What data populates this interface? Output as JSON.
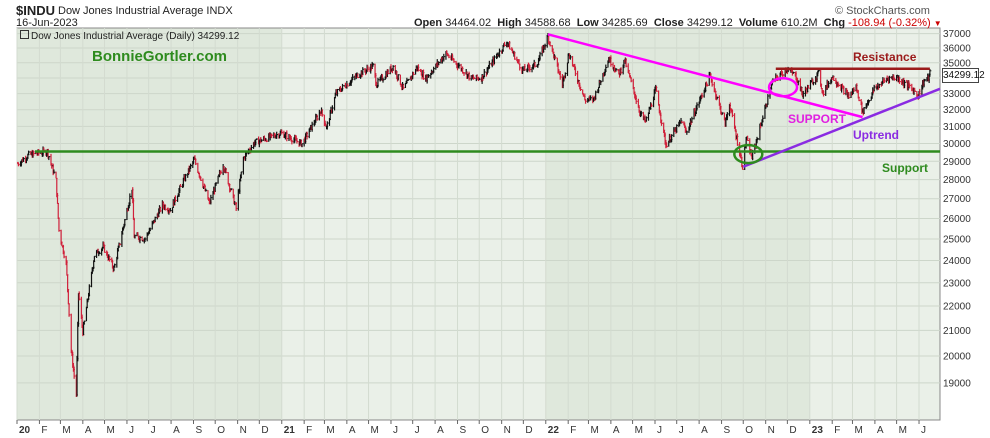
{
  "header": {
    "symbol": "$INDU",
    "company": "Dow Jones Industrial Average INDX",
    "date": "16-Jun-2023",
    "open_label": "Open",
    "open": "34464.02",
    "high_label": "High",
    "high": "34588.68",
    "low_label": "Low",
    "low": "34285.69",
    "close_label": "Close",
    "close": "34299.12",
    "volume_label": "Volume",
    "volume": "610.2M",
    "chg_label": "Chg",
    "chg": "-108.94 (-0.32%)",
    "copyright": "© StockCharts.com"
  },
  "legend_label": "Dow Jones Industrial Average (Daily) 34299.12",
  "watermark": "BonnieGortler.com",
  "price_tag": "34299.12",
  "annotations": {
    "resistance": "Resistance",
    "support_upper": "SUPPORT",
    "uptrend": "Uptrend",
    "support_lower": "Support"
  },
  "colors": {
    "up_bar": "#111111",
    "down_bar": "#d0203a",
    "support_line": "#2e8b1e",
    "resistance_line": "#9b1b1b",
    "downtrend_line": "#ff00ff",
    "uptrend_line": "#8a2be2",
    "year_shade": "#dfe8dc",
    "alt_shade": "#eaf0e8"
  },
  "chart_data": {
    "type": "line",
    "title": "Dow Jones Industrial Average (Daily) 34299.12",
    "y_scale": "log",
    "ylim": [
      17700,
      37400
    ],
    "y_ticks": [
      19000,
      20000,
      21000,
      22000,
      23000,
      24000,
      25000,
      26000,
      27000,
      28000,
      29000,
      30000,
      31000,
      32000,
      33000,
      34000,
      35000,
      36000,
      37000
    ],
    "grid": true,
    "x_ticks": [
      "20",
      "F",
      "M",
      "A",
      "M",
      "J",
      "J",
      "A",
      "S",
      "O",
      "N",
      "D",
      "21",
      "F",
      "M",
      "A",
      "M",
      "J",
      "J",
      "A",
      "S",
      "O",
      "N",
      "D",
      "22",
      "F",
      "M",
      "A",
      "M",
      "J",
      "J",
      "A",
      "S",
      "O",
      "N",
      "D",
      "23",
      "F",
      "M",
      "A",
      "M",
      "J"
    ],
    "series": [
      {
        "values": [
          [
            "2020-01-02",
            28868
          ],
          [
            "2020-01-17",
            29348
          ],
          [
            "2020-02-12",
            29551
          ],
          [
            "2020-02-24",
            27960
          ],
          [
            "2020-02-28",
            25409
          ],
          [
            "2020-03-09",
            23851
          ],
          [
            "2020-03-16",
            20188
          ],
          [
            "2020-03-23",
            18591
          ],
          [
            "2020-03-26",
            22552
          ],
          [
            "2020-04-01",
            20943
          ],
          [
            "2020-04-17",
            24242
          ],
          [
            "2020-04-29",
            24634
          ],
          [
            "2020-05-14",
            23625
          ],
          [
            "2020-06-08",
            27572
          ],
          [
            "2020-06-11",
            25128
          ],
          [
            "2020-06-26",
            25016
          ],
          [
            "2020-07-20",
            26680
          ],
          [
            "2020-07-31",
            26428
          ],
          [
            "2020-08-17",
            27844
          ],
          [
            "2020-09-02",
            29100
          ],
          [
            "2020-09-23",
            26763
          ],
          [
            "2020-10-12",
            28837
          ],
          [
            "2020-10-30",
            26501
          ],
          [
            "2020-11-09",
            29158
          ],
          [
            "2020-11-24",
            30046
          ],
          [
            "2020-12-31",
            30606
          ],
          [
            "2021-01-29",
            29983
          ],
          [
            "2021-02-24",
            31961
          ],
          [
            "2021-03-04",
            30924
          ],
          [
            "2021-03-17",
            33015
          ],
          [
            "2021-04-16",
            34200
          ],
          [
            "2021-05-07",
            34778
          ],
          [
            "2021-05-12",
            33587
          ],
          [
            "2021-06-04",
            34756
          ],
          [
            "2021-06-18",
            33290
          ],
          [
            "2021-07-07",
            34681
          ],
          [
            "2021-07-19",
            33962
          ],
          [
            "2021-08-16",
            35625
          ],
          [
            "2021-09-20",
            33970
          ],
          [
            "2021-10-04",
            34002
          ],
          [
            "2021-11-08",
            36432
          ],
          [
            "2021-11-30",
            34484
          ],
          [
            "2021-12-20",
            34932
          ],
          [
            "2022-01-04",
            36799
          ],
          [
            "2022-01-24",
            33596
          ],
          [
            "2022-02-02",
            35629
          ],
          [
            "2022-02-24",
            32600
          ],
          [
            "2022-03-08",
            32632
          ],
          [
            "2022-03-29",
            35294
          ],
          [
            "2022-04-12",
            34220
          ],
          [
            "2022-04-20",
            35160
          ],
          [
            "2022-05-12",
            31730
          ],
          [
            "2022-05-19",
            31253
          ],
          [
            "2022-06-02",
            33248
          ],
          [
            "2022-06-16",
            29927
          ],
          [
            "2022-07-08",
            31338
          ],
          [
            "2022-07-14",
            30630
          ],
          [
            "2022-08-16",
            34152
          ],
          [
            "2022-09-06",
            31145
          ],
          [
            "2022-09-12",
            32381
          ],
          [
            "2022-09-30",
            28725
          ],
          [
            "2022-10-05",
            30273
          ],
          [
            "2022-10-13",
            29210
          ],
          [
            "2022-11-10",
            33715
          ],
          [
            "2022-11-30",
            34589
          ],
          [
            "2022-12-13",
            34108
          ],
          [
            "2022-12-22",
            32941
          ],
          [
            "2023-01-13",
            34302
          ],
          [
            "2023-01-19",
            33045
          ],
          [
            "2023-02-01",
            34092
          ],
          [
            "2023-02-24",
            32817
          ],
          [
            "2023-03-06",
            33431
          ],
          [
            "2023-03-15",
            31875
          ],
          [
            "2023-03-31",
            33274
          ],
          [
            "2023-04-18",
            33976
          ],
          [
            "2023-05-01",
            34051
          ],
          [
            "2023-05-19",
            33427
          ],
          [
            "2023-05-31",
            32908
          ],
          [
            "2023-06-08",
            33833
          ],
          [
            "2023-06-14",
            33979
          ],
          [
            "2023-06-16",
            34299
          ]
        ]
      }
    ],
    "annotations": [
      {
        "label": "Support",
        "type": "horizontal",
        "y": 29550
      },
      {
        "label": "Resistance",
        "type": "horizontal",
        "y": 34600,
        "from": "2022-11-15",
        "to": "2023-06-16"
      },
      {
        "label": "SUPPORT",
        "type": "trendline",
        "from": [
          "2022-01-04",
          36950
        ],
        "to": [
          "2023-03-15",
          31550
        ]
      },
      {
        "label": "Uptrend",
        "type": "trendline",
        "from": [
          "2022-10-01",
          28700
        ],
        "to": [
          "2023-06-30",
          33300
        ]
      }
    ]
  }
}
